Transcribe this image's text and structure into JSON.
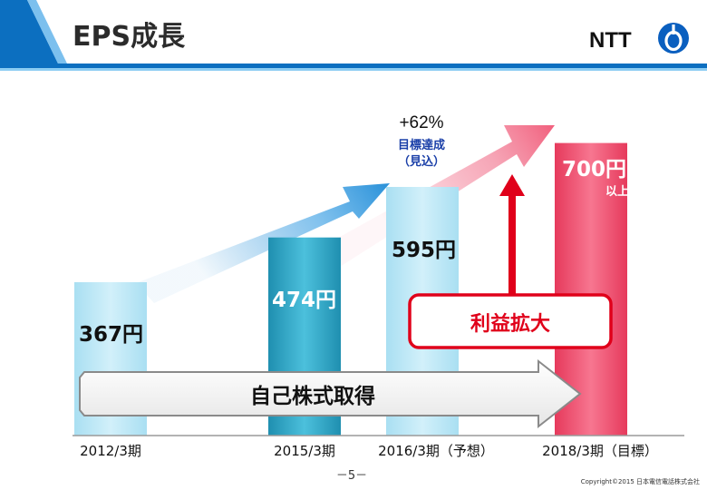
{
  "slide": {
    "title": "EPS成長",
    "logo_text": "NTT",
    "page_number": "－5－",
    "copyright": "Copyright©2015 日本電信電話株式会社"
  },
  "chart_data": {
    "type": "bar",
    "categories": [
      "2012/3期",
      "2015/3期",
      "2016/3期（予想）",
      "2018/3期（目標）"
    ],
    "values": [
      367,
      474,
      595,
      700
    ],
    "value_labels": [
      "367円",
      "474円",
      "595円",
      "700円"
    ],
    "value_suffix_last": "以上",
    "ylim": [
      0,
      760
    ],
    "annotations": {
      "growth": "+62%",
      "target_note_line1": "目標達成",
      "target_note_line2": "（見込）",
      "profit_box": "利益拡大",
      "buyback_arrow": "自己株式取得"
    },
    "colors": {
      "bar_light": "#bfe8f7",
      "bar_dark": "#2aa5c4",
      "bar_target": "#f04a6c",
      "accent_blue": "#0b7fd0",
      "accent_red": "#e0001a"
    }
  }
}
